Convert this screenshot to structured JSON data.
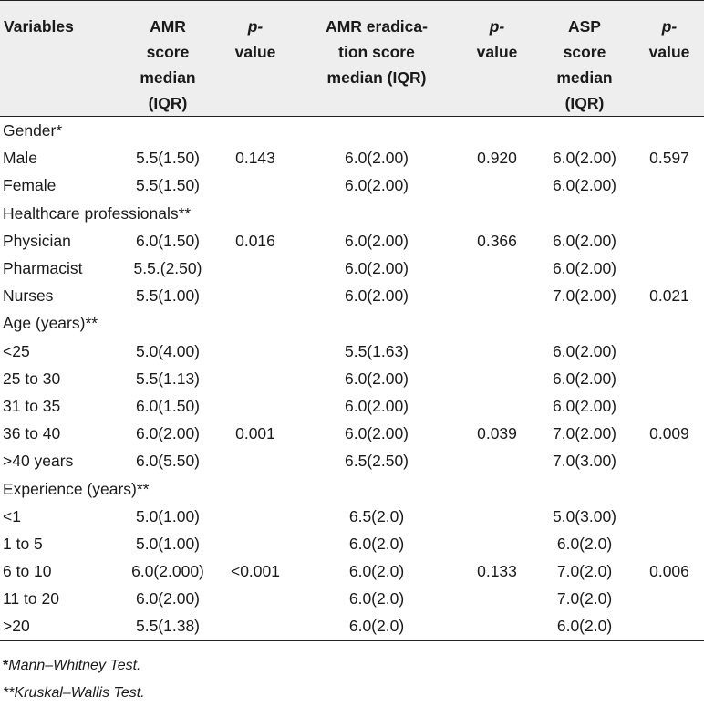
{
  "header": {
    "variables": "Variables",
    "amr_l1": "AMR",
    "amr_l2": "score",
    "amr_l3": "median",
    "amr_l4": "(IQR)",
    "p1_l1": "p-",
    "p1_l2": "value",
    "erad_l1": "AMR eradica-",
    "erad_l2": "tion score",
    "erad_l3": "median (IQR)",
    "p2_l1": "p-",
    "p2_l2": "value",
    "asp_l1": "ASP",
    "asp_l2": "score",
    "asp_l3": "median",
    "asp_l4": "(IQR)",
    "p3_l1": "p-",
    "p3_l2": "value"
  },
  "rows": [
    {
      "type": "group",
      "label": "Gender*"
    },
    {
      "label": "Male",
      "amr": "5.5(1.50)",
      "p1": "0.143",
      "erad": "6.0(2.00)",
      "p2": "0.920",
      "asp": "6.0(2.00)",
      "p3": "0.597"
    },
    {
      "label": "Female",
      "amr": "5.5(1.50)",
      "p1": "",
      "erad": "6.0(2.00)",
      "p2": "",
      "asp": "6.0(2.00)",
      "p3": ""
    },
    {
      "type": "group",
      "label": "Healthcare professionals**"
    },
    {
      "label": "Physician",
      "amr": "6.0(1.50)",
      "p1": "0.016",
      "erad": "6.0(2.00)",
      "p2": "0.366",
      "asp": "6.0(2.00)",
      "p3": ""
    },
    {
      "label": "Pharmacist",
      "amr": "5.5.(2.50)",
      "p1": "",
      "erad": "6.0(2.00)",
      "p2": "",
      "asp": "6.0(2.00)",
      "p3": ""
    },
    {
      "label": "Nurses",
      "amr": "5.5(1.00)",
      "p1": "",
      "erad": "6.0(2.00)",
      "p2": "",
      "asp": "7.0(2.00)",
      "p3": "0.021"
    },
    {
      "type": "group",
      "label": "Age (years)**"
    },
    {
      "label": "<25",
      "amr": "5.0(4.00)",
      "p1": "",
      "erad": "5.5(1.63)",
      "p2": "",
      "asp": "6.0(2.00)",
      "p3": ""
    },
    {
      "label": "25 to 30",
      "amr": "5.5(1.13)",
      "p1": "",
      "erad": "6.0(2.00)",
      "p2": "",
      "asp": "6.0(2.00)",
      "p3": ""
    },
    {
      "label": "31 to 35",
      "amr": "6.0(1.50)",
      "p1": "",
      "erad": "6.0(2.00)",
      "p2": "",
      "asp": "6.0(2.00)",
      "p3": ""
    },
    {
      "label": "36 to 40",
      "amr": "6.0(2.00)",
      "p1": "0.001",
      "erad": "6.0(2.00)",
      "p2": "0.039",
      "asp": "7.0(2.00)",
      "p3": "0.009"
    },
    {
      "label": ">40 years",
      "amr": "6.0(5.50)",
      "p1": "",
      "erad": "6.5(2.50)",
      "p2": "",
      "asp": "7.0(3.00)",
      "p3": ""
    },
    {
      "type": "group",
      "label": "Experience (years)**"
    },
    {
      "label": "<1",
      "amr": "5.0(1.00)",
      "p1": "",
      "erad": "6.5(2.0)",
      "p2": "",
      "asp": "5.0(3.00)",
      "p3": ""
    },
    {
      "label": "1 to 5",
      "amr": "5.0(1.00)",
      "p1": "",
      "erad": "6.0(2.0)",
      "p2": "",
      "asp": "6.0(2.0)",
      "p3": ""
    },
    {
      "label": "6 to 10",
      "amr": "6.0(2.000)",
      "p1": "<0.001",
      "erad": "6.0(2.0)",
      "p2": "0.133",
      "asp": "7.0(2.0)",
      "p3": "0.006"
    },
    {
      "label": "11 to 20",
      "amr": "6.0(2.00)",
      "p1": "",
      "erad": "6.0(2.0)",
      "p2": "",
      "asp": "7.0(2.0)",
      "p3": ""
    },
    {
      "label": ">20",
      "amr": "5.5(1.38)",
      "p1": "",
      "erad": "6.0(2.0)",
      "p2": "",
      "asp": "6.0(2.0)",
      "p3": ""
    }
  ],
  "notes": {
    "note1_mark": "*",
    "note1_text": "Mann–Whitney Test.",
    "note2_mark": "**",
    "note2_text": "Kruskal–Wallis Test."
  }
}
